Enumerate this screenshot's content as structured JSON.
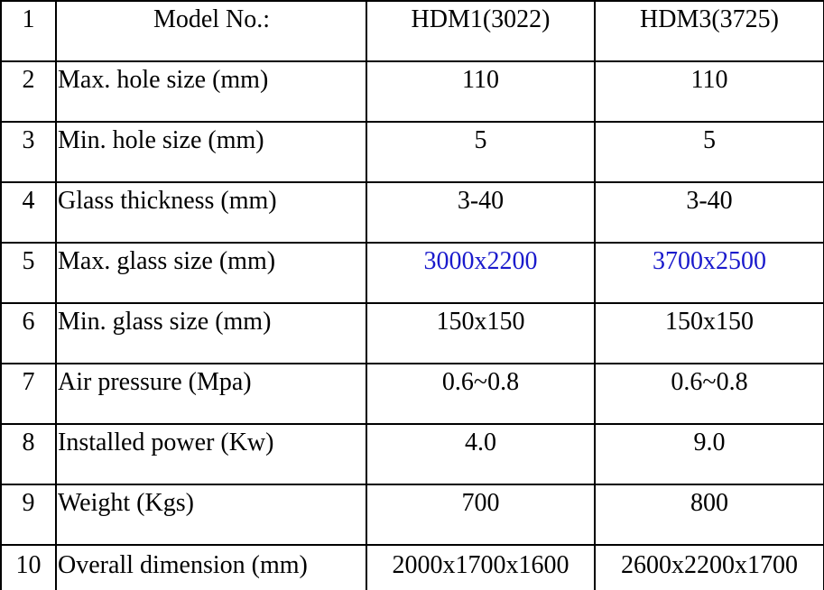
{
  "table": {
    "rows": [
      [
        "1",
        "Model No.:",
        "HDM1(3022)",
        "HDM3(3725)"
      ],
      [
        "2",
        "Max. hole size (mm)",
        "110",
        "110"
      ],
      [
        "3",
        "Min. hole size (mm)",
        "5",
        "5"
      ],
      [
        "4",
        "Glass thickness (mm)",
        "3-40",
        "3-40"
      ],
      [
        "5",
        "Max. glass size (mm)",
        "3000x2200",
        "3700x2500"
      ],
      [
        "6",
        "Min. glass size (mm)",
        "150x150",
        "150x150"
      ],
      [
        "7",
        "Air pressure (Mpa)",
        "0.6~0.8",
        "0.6~0.8"
      ],
      [
        "8",
        "Installed power (Kw)",
        "4.0",
        "9.0"
      ],
      [
        "9",
        "Weight (Kgs)",
        "700",
        "800"
      ],
      [
        "10",
        "Overall dimension (mm)",
        "2000x1700x1600",
        "2600x2200x1700"
      ]
    ]
  }
}
